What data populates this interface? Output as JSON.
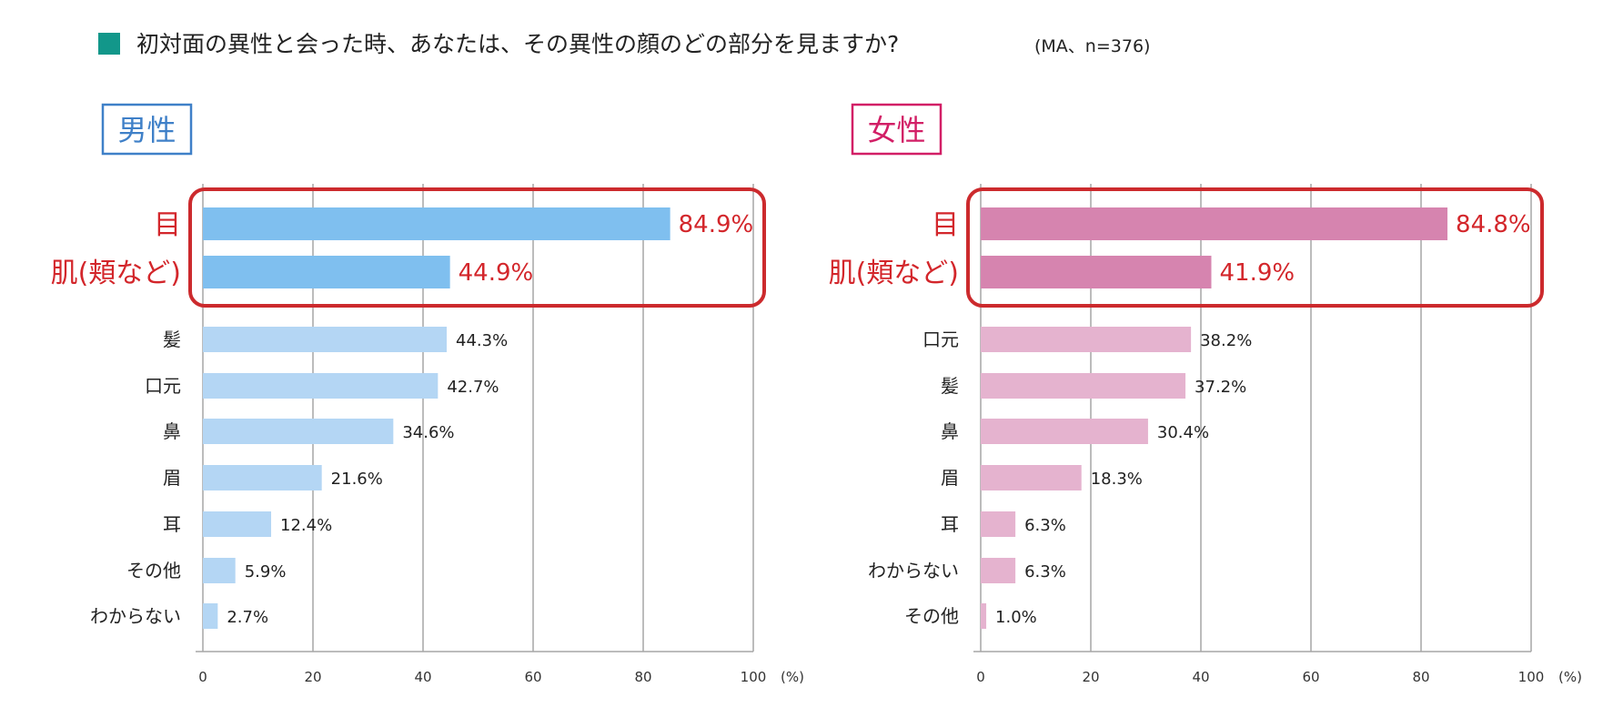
{
  "title": {
    "text": "初対面の異性と会った時、あなたは、その異性の顔のどの部分を見ますか?",
    "note": "(MA、n=376)",
    "marker_color": "#12978a"
  },
  "chart_data": [
    {
      "type": "bar",
      "orientation": "horizontal",
      "panel_label": "男性",
      "panel_color": "#3f80c8",
      "categories": [
        "目",
        "肌(頬など)",
        "髪",
        "口元",
        "鼻",
        "眉",
        "耳",
        "その他",
        "わからない"
      ],
      "values": [
        84.9,
        44.9,
        44.3,
        42.7,
        34.6,
        21.6,
        12.4,
        5.9,
        2.7
      ],
      "value_labels": [
        "84.9%",
        "44.9%",
        "44.3%",
        "42.7%",
        "34.6%",
        "21.6%",
        "12.4%",
        "5.9%",
        "2.7%"
      ],
      "highlighted": [
        true,
        true,
        false,
        false,
        false,
        false,
        false,
        false,
        false
      ],
      "bar_color": "#b4d6f4",
      "highlight_bar_color": "#7fbfef",
      "xlim": [
        0,
        100
      ],
      "xticks": [
        0,
        20,
        40,
        60,
        80,
        100
      ],
      "xunit": "(%)",
      "grid": true
    },
    {
      "type": "bar",
      "orientation": "horizontal",
      "panel_label": "女性",
      "panel_color": "#d21f66",
      "categories": [
        "目",
        "肌(頬など)",
        "口元",
        "髪",
        "鼻",
        "眉",
        "耳",
        "わからない",
        "その他"
      ],
      "values": [
        84.8,
        41.9,
        38.2,
        37.2,
        30.4,
        18.3,
        6.3,
        6.3,
        1.0
      ],
      "value_labels": [
        "84.8%",
        "41.9%",
        "38.2%",
        "37.2%",
        "30.4%",
        "18.3%",
        "6.3%",
        "6.3%",
        "1.0%"
      ],
      "highlighted": [
        true,
        true,
        false,
        false,
        false,
        false,
        false,
        false,
        false
      ],
      "bar_color": "#e5b3cf",
      "highlight_bar_color": "#d684af",
      "xlim": [
        0,
        100
      ],
      "xticks": [
        0,
        20,
        40,
        60,
        80,
        100
      ],
      "xunit": "(%)",
      "grid": true
    }
  ],
  "highlight_frame_color": "#cc2a2d"
}
